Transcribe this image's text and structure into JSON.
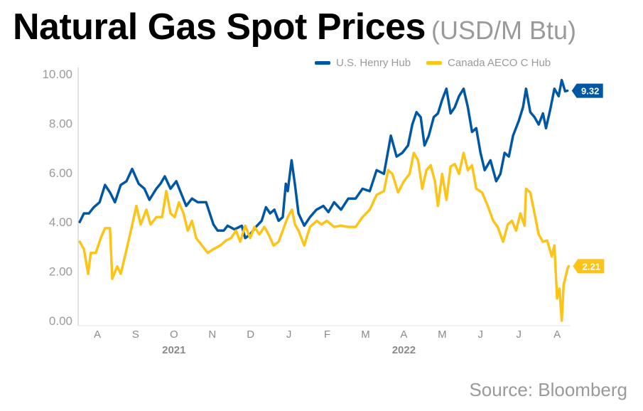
{
  "title": "Natural Gas Spot Prices",
  "unit": "(USD/M Btu)",
  "source": "Source: Bloomberg",
  "chart_data": {
    "type": "line",
    "title": "Natural Gas Spot Prices",
    "ylabel": "USD/M Btu",
    "xlabel": "",
    "x_units": "months since 2021-08-01",
    "xlim": [
      0,
      12.85
    ],
    "ylim": [
      0,
      10
    ],
    "yticks": [
      "0.00",
      "2.00",
      "4.00",
      "6.00",
      "8.00",
      "10.00"
    ],
    "ytick_values": [
      0,
      2,
      4,
      6,
      8,
      10
    ],
    "month_labels": [
      "A",
      "S",
      "O",
      "N",
      "D",
      "J",
      "F",
      "M",
      "A",
      "M",
      "J",
      "J",
      "A"
    ],
    "year_labels": [
      {
        "label": "2021",
        "at": 2.5
      },
      {
        "label": "2022",
        "at": 8.5
      }
    ],
    "legend_position": "top-right",
    "grid": false,
    "series": [
      {
        "name": "U.S. Henry Hub",
        "color": "#0057a4",
        "end_label": "9.32",
        "points": [
          [
            0.04,
            4.0
          ],
          [
            0.15,
            4.35
          ],
          [
            0.28,
            4.35
          ],
          [
            0.41,
            4.6
          ],
          [
            0.56,
            4.8
          ],
          [
            0.7,
            5.5
          ],
          [
            0.83,
            5.2
          ],
          [
            0.96,
            4.8
          ],
          [
            1.11,
            5.5
          ],
          [
            1.26,
            5.65
          ],
          [
            1.41,
            6.15
          ],
          [
            1.58,
            5.55
          ],
          [
            1.73,
            5.35
          ],
          [
            1.86,
            4.9
          ],
          [
            2.04,
            5.35
          ],
          [
            2.15,
            5.55
          ],
          [
            2.26,
            5.85
          ],
          [
            2.41,
            5.35
          ],
          [
            2.56,
            5.65
          ],
          [
            2.69,
            5.15
          ],
          [
            2.82,
            4.65
          ],
          [
            2.97,
            4.95
          ],
          [
            3.12,
            4.8
          ],
          [
            3.34,
            4.8
          ],
          [
            3.53,
            3.9
          ],
          [
            3.64,
            3.65
          ],
          [
            3.8,
            3.65
          ],
          [
            3.9,
            3.85
          ],
          [
            4.08,
            3.7
          ],
          [
            4.27,
            3.85
          ],
          [
            4.36,
            3.35
          ],
          [
            4.49,
            3.5
          ],
          [
            4.64,
            3.8
          ],
          [
            4.79,
            4.05
          ],
          [
            4.9,
            4.6
          ],
          [
            5.01,
            4.35
          ],
          [
            5.12,
            4.5
          ],
          [
            5.23,
            4.05
          ],
          [
            5.34,
            4.2
          ],
          [
            5.42,
            5.55
          ],
          [
            5.47,
            5.25
          ],
          [
            5.57,
            6.5
          ],
          [
            5.66,
            5.5
          ],
          [
            5.75,
            4.35
          ],
          [
            5.9,
            3.85
          ],
          [
            6.05,
            4.2
          ],
          [
            6.22,
            4.5
          ],
          [
            6.4,
            4.65
          ],
          [
            6.53,
            4.4
          ],
          [
            6.68,
            4.8
          ],
          [
            6.86,
            4.5
          ],
          [
            7.05,
            4.95
          ],
          [
            7.24,
            4.95
          ],
          [
            7.42,
            5.35
          ],
          [
            7.61,
            5.25
          ],
          [
            7.79,
            6.1
          ],
          [
            7.98,
            5.95
          ],
          [
            8.16,
            7.5
          ],
          [
            8.31,
            6.65
          ],
          [
            8.46,
            6.8
          ],
          [
            8.61,
            7.1
          ],
          [
            8.72,
            7.95
          ],
          [
            8.83,
            8.45
          ],
          [
            8.94,
            8.25
          ],
          [
            9.04,
            7.1
          ],
          [
            9.15,
            7.5
          ],
          [
            9.28,
            8.25
          ],
          [
            9.39,
            8.4
          ],
          [
            9.5,
            8.95
          ],
          [
            9.61,
            9.4
          ],
          [
            9.72,
            8.4
          ],
          [
            9.83,
            8.65
          ],
          [
            9.94,
            9.1
          ],
          [
            10.06,
            9.4
          ],
          [
            10.17,
            8.65
          ],
          [
            10.28,
            7.65
          ],
          [
            10.39,
            7.8
          ],
          [
            10.5,
            6.8
          ],
          [
            10.61,
            6.1
          ],
          [
            10.76,
            6.5
          ],
          [
            10.91,
            5.65
          ],
          [
            11.02,
            5.95
          ],
          [
            11.13,
            6.8
          ],
          [
            11.24,
            6.65
          ],
          [
            11.35,
            7.5
          ],
          [
            11.5,
            8.1
          ],
          [
            11.61,
            8.65
          ],
          [
            11.69,
            9.4
          ],
          [
            11.8,
            8.45
          ],
          [
            11.91,
            8.25
          ],
          [
            12.02,
            7.95
          ],
          [
            12.13,
            8.4
          ],
          [
            12.21,
            7.8
          ],
          [
            12.32,
            8.55
          ],
          [
            12.43,
            9.4
          ],
          [
            12.54,
            9.1
          ],
          [
            12.62,
            9.75
          ],
          [
            12.71,
            9.3
          ],
          [
            12.77,
            9.32
          ]
        ]
      },
      {
        "name": "Canada AECO C Hub",
        "color": "#fcc419",
        "end_label": "2.21",
        "points": [
          [
            0.04,
            3.2
          ],
          [
            0.15,
            2.9
          ],
          [
            0.26,
            1.9
          ],
          [
            0.33,
            2.75
          ],
          [
            0.46,
            2.75
          ],
          [
            0.59,
            3.35
          ],
          [
            0.7,
            3.75
          ],
          [
            0.83,
            3.75
          ],
          [
            0.89,
            1.7
          ],
          [
            1.02,
            2.2
          ],
          [
            1.11,
            1.9
          ],
          [
            1.22,
            2.6
          ],
          [
            1.39,
            3.75
          ],
          [
            1.52,
            4.65
          ],
          [
            1.63,
            3.9
          ],
          [
            1.78,
            4.5
          ],
          [
            1.89,
            3.9
          ],
          [
            2.04,
            4.2
          ],
          [
            2.19,
            4.2
          ],
          [
            2.3,
            5.25
          ],
          [
            2.41,
            4.35
          ],
          [
            2.52,
            4.2
          ],
          [
            2.63,
            4.8
          ],
          [
            2.75,
            4.35
          ],
          [
            2.86,
            3.65
          ],
          [
            2.97,
            4.05
          ],
          [
            3.08,
            3.35
          ],
          [
            3.23,
            3.05
          ],
          [
            3.38,
            2.75
          ],
          [
            3.53,
            2.9
          ],
          [
            3.71,
            3.05
          ],
          [
            3.86,
            3.25
          ],
          [
            3.99,
            3.35
          ],
          [
            4.12,
            3.65
          ],
          [
            4.23,
            3.2
          ],
          [
            4.36,
            3.85
          ],
          [
            4.49,
            3.35
          ],
          [
            4.6,
            3.8
          ],
          [
            4.73,
            3.5
          ],
          [
            4.86,
            3.8
          ],
          [
            4.97,
            3.5
          ],
          [
            5.1,
            3.05
          ],
          [
            5.23,
            3.2
          ],
          [
            5.34,
            3.65
          ],
          [
            5.47,
            4.2
          ],
          [
            5.58,
            4.5
          ],
          [
            5.66,
            3.9
          ],
          [
            5.75,
            3.65
          ],
          [
            5.9,
            3.05
          ],
          [
            6.05,
            3.8
          ],
          [
            6.23,
            4.05
          ],
          [
            6.35,
            3.9
          ],
          [
            6.49,
            4.05
          ],
          [
            6.68,
            3.8
          ],
          [
            6.86,
            3.85
          ],
          [
            7.05,
            3.8
          ],
          [
            7.24,
            3.8
          ],
          [
            7.42,
            4.2
          ],
          [
            7.61,
            4.5
          ],
          [
            7.79,
            5.1
          ],
          [
            7.98,
            5.25
          ],
          [
            8.09,
            6.1
          ],
          [
            8.2,
            5.95
          ],
          [
            8.35,
            5.2
          ],
          [
            8.5,
            5.65
          ],
          [
            8.65,
            5.95
          ],
          [
            8.76,
            6.8
          ],
          [
            8.87,
            6.5
          ],
          [
            8.98,
            5.35
          ],
          [
            9.09,
            6.1
          ],
          [
            9.2,
            6.3
          ],
          [
            9.31,
            5.65
          ],
          [
            9.39,
            4.65
          ],
          [
            9.5,
            5.95
          ],
          [
            9.61,
            4.9
          ],
          [
            9.72,
            6.25
          ],
          [
            9.83,
            6.35
          ],
          [
            9.94,
            5.95
          ],
          [
            10.06,
            6.8
          ],
          [
            10.17,
            6.1
          ],
          [
            10.28,
            6.3
          ],
          [
            10.39,
            5.35
          ],
          [
            10.54,
            5.2
          ],
          [
            10.69,
            4.65
          ],
          [
            10.83,
            4.05
          ],
          [
            10.95,
            3.8
          ],
          [
            11.09,
            3.2
          ],
          [
            11.21,
            3.9
          ],
          [
            11.32,
            4.05
          ],
          [
            11.43,
            3.65
          ],
          [
            11.54,
            4.35
          ],
          [
            11.65,
            3.85
          ],
          [
            11.69,
            5.35
          ],
          [
            11.8,
            5.2
          ],
          [
            11.91,
            4.35
          ],
          [
            12.02,
            3.5
          ],
          [
            12.13,
            3.2
          ],
          [
            12.24,
            3.25
          ],
          [
            12.36,
            2.6
          ],
          [
            12.43,
            3.05
          ],
          [
            12.5,
            0.9
          ],
          [
            12.56,
            1.3
          ],
          [
            12.62,
            0.0
          ],
          [
            12.67,
            1.45
          ],
          [
            12.77,
            2.1
          ],
          [
            12.8,
            2.21
          ]
        ]
      }
    ]
  }
}
